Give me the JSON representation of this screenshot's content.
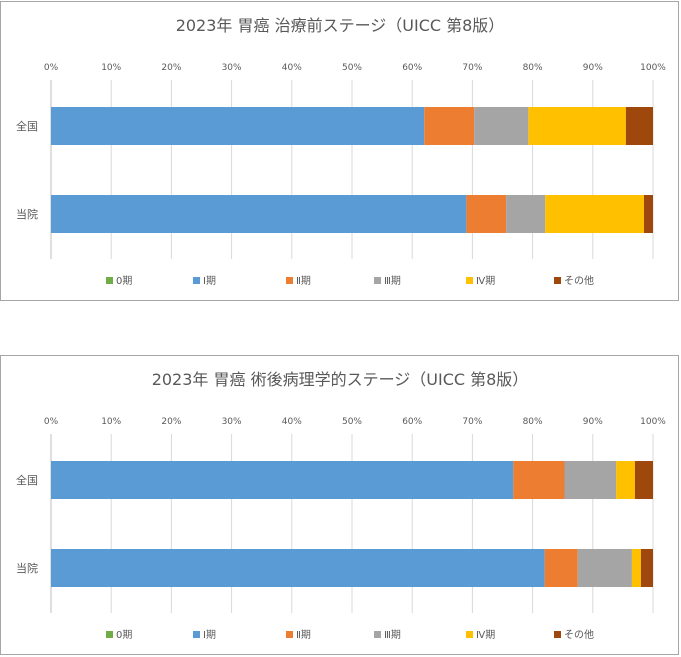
{
  "chart_data": [
    {
      "type": "bar",
      "orientation": "horizontal",
      "stacked": true,
      "percent": true,
      "title": "2023年  胃癌  治療前ステージ（UICC 第8版）",
      "xlim": [
        0,
        100
      ],
      "ticks": [
        "0%",
        "10%",
        "20%",
        "30%",
        "40%",
        "50%",
        "60%",
        "70%",
        "80%",
        "90%",
        "100%"
      ],
      "categories": [
        "全国",
        "当院"
      ],
      "grid": true,
      "legend_position": "bottom",
      "series": [
        {
          "name": "0期",
          "color": "#70ad47",
          "values": [
            0,
            0
          ]
        },
        {
          "name": "Ⅰ期",
          "color": "#5b9bd5",
          "values": [
            62,
            69
          ]
        },
        {
          "name": "Ⅱ期",
          "color": "#ed7d31",
          "values": [
            8.3,
            6.6
          ]
        },
        {
          "name": "Ⅲ期",
          "color": "#a5a5a5",
          "values": [
            9,
            6.5
          ]
        },
        {
          "name": "Ⅳ期",
          "color": "#ffc000",
          "values": [
            16.2,
            16.4
          ]
        },
        {
          "name": "その他",
          "color": "#9e480e",
          "values": [
            4.5,
            1.5
          ]
        }
      ]
    },
    {
      "type": "bar",
      "orientation": "horizontal",
      "stacked": true,
      "percent": true,
      "title": "2023年  胃癌  術後病理学的ステージ（UICC 第8版）",
      "xlim": [
        0,
        100
      ],
      "ticks": [
        "0%",
        "10%",
        "20%",
        "30%",
        "40%",
        "50%",
        "60%",
        "70%",
        "80%",
        "90%",
        "100%"
      ],
      "categories": [
        "全国",
        "当院"
      ],
      "grid": true,
      "legend_position": "bottom",
      "series": [
        {
          "name": "0期",
          "color": "#70ad47",
          "values": [
            0,
            0
          ]
        },
        {
          "name": "Ⅰ期",
          "color": "#5b9bd5",
          "values": [
            76.8,
            82
          ]
        },
        {
          "name": "Ⅱ期",
          "color": "#ed7d31",
          "values": [
            8.5,
            5.5
          ]
        },
        {
          "name": "Ⅲ期",
          "color": "#a5a5a5",
          "values": [
            8.6,
            9
          ]
        },
        {
          "name": "Ⅳ期",
          "color": "#ffc000",
          "values": [
            3.1,
            1.5
          ]
        },
        {
          "name": "その他",
          "color": "#9e480e",
          "values": [
            3,
            2
          ]
        }
      ]
    }
  ]
}
